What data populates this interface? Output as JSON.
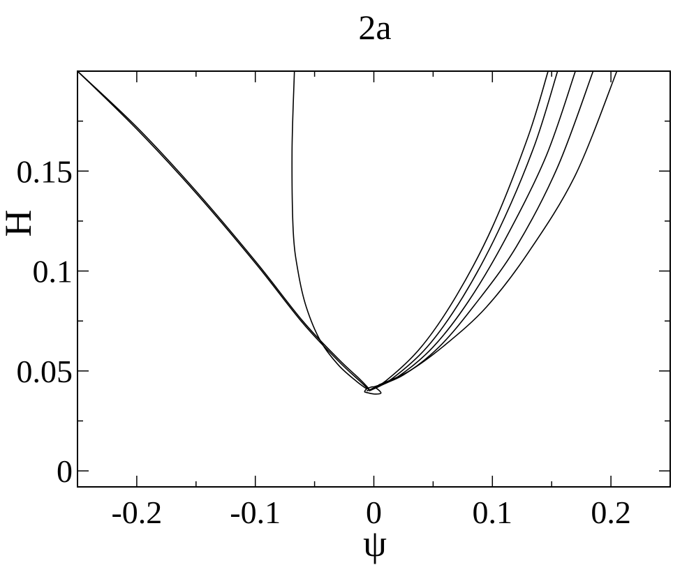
{
  "chart_data": {
    "type": "line",
    "title": "2a",
    "xlabel": "ψ",
    "ylabel": "H",
    "xlim": [
      -0.25,
      0.25
    ],
    "ylim": [
      -0.008,
      0.2
    ],
    "xticks": [
      -0.2,
      -0.1,
      0,
      0.1,
      0.2
    ],
    "xtick_labels": [
      "-0.2",
      "-0.1",
      "0",
      "0.1",
      "0.2"
    ],
    "yticks": [
      0,
      0.05,
      0.1,
      0.15
    ],
    "ytick_labels": [
      "0",
      "0.05",
      "0.1",
      "0.15"
    ],
    "grid": false,
    "legend": "none",
    "line_color": "#000000",
    "series": [
      {
        "x": [
          -0.25,
          -0.2,
          -0.15,
          -0.1,
          -0.06,
          -0.03,
          -0.012,
          -0.004
        ],
        "y": [
          0.2,
          0.171,
          0.139,
          0.104,
          0.074,
          0.055,
          0.045,
          0.0405
        ]
      },
      {
        "x": [
          -0.25,
          -0.2,
          -0.15,
          -0.1,
          -0.06,
          -0.03,
          -0.012,
          -0.004
        ],
        "y": [
          0.2,
          0.172,
          0.14,
          0.105,
          0.075,
          0.056,
          0.046,
          0.041
        ]
      },
      {
        "x": [
          -0.067,
          -0.069,
          -0.068,
          -0.064,
          -0.057,
          -0.045,
          -0.03,
          -0.015,
          -0.006
        ],
        "y": [
          0.2,
          0.16,
          0.12,
          0.1,
          0.082,
          0.065,
          0.053,
          0.045,
          0.041
        ]
      },
      {
        "x": [
          -0.008,
          0.0,
          0.006,
          0.0,
          -0.006,
          -0.008
        ],
        "y": [
          0.0395,
          0.0385,
          0.039,
          0.042,
          0.041,
          0.0395
        ]
      },
      {
        "x": [
          -0.006,
          0.01,
          0.04,
          0.07,
          0.1,
          0.13,
          0.147
        ],
        "y": [
          0.04,
          0.045,
          0.062,
          0.088,
          0.122,
          0.167,
          0.2
        ]
      },
      {
        "x": [
          -0.004,
          0.015,
          0.045,
          0.075,
          0.105,
          0.135,
          0.155
        ],
        "y": [
          0.04,
          0.046,
          0.062,
          0.087,
          0.12,
          0.162,
          0.2
        ]
      },
      {
        "x": [
          -0.002,
          0.02,
          0.05,
          0.08,
          0.11,
          0.145,
          0.17
        ],
        "y": [
          0.041,
          0.047,
          0.062,
          0.085,
          0.115,
          0.157,
          0.2
        ]
      },
      {
        "x": [
          0.0,
          0.025,
          0.055,
          0.085,
          0.12,
          0.155,
          0.185
        ],
        "y": [
          0.042,
          0.048,
          0.062,
          0.083,
          0.112,
          0.152,
          0.2
        ]
      },
      {
        "x": [
          0.004,
          0.03,
          0.06,
          0.095,
          0.13,
          0.17,
          0.205
        ],
        "y": [
          0.043,
          0.05,
          0.063,
          0.082,
          0.109,
          0.148,
          0.2
        ]
      }
    ]
  }
}
